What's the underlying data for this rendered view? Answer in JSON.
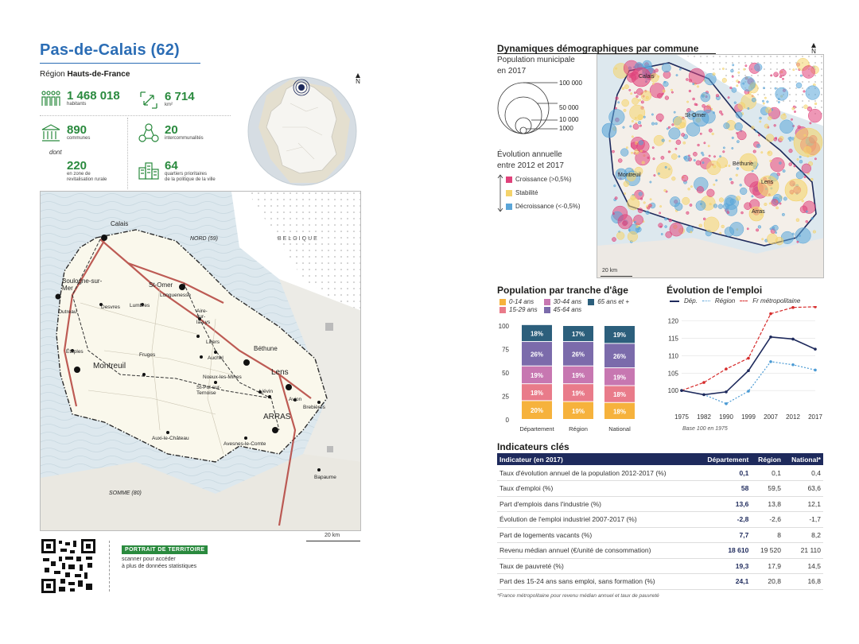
{
  "header": {
    "title": "Pas-de-Calais (62)",
    "region_label": "Région",
    "region_name": "Hauts-de-France"
  },
  "stats": {
    "habitants_value": "1 468 018",
    "habitants_label": "habitants",
    "area_value": "6 714",
    "area_unit": "km²",
    "communes_value": "890",
    "communes_label": "communes",
    "intercos_value": "20",
    "intercos_label": "intercommunalités",
    "dont_label": "dont",
    "zrr_value": "220",
    "zrr_label_1": "en zone de",
    "zrr_label_2": "revitalisation rurale",
    "qpv_value": "64",
    "qpv_label_1": "quartiers prioritaires",
    "qpv_label_2": "de la politique de la ville"
  },
  "compass": {
    "north": "N"
  },
  "left_map": {
    "labels": {
      "calais": "Calais",
      "nord": "NORD (59)",
      "belgique": "BELGIQUE",
      "boulogne_1": "Boulogne-sur-",
      "boulogne_2": "Mer",
      "st_omer": "St-Omer",
      "longuenesse": "Longuenesse",
      "desvres": "Desvres",
      "lumbres": "Lumbres",
      "outreau": "Outreau",
      "aire_1": "Aire-",
      "aire_2": "sur-",
      "aire_3": "la-Lys",
      "lillers": "Lillers",
      "bethune": "Béthune",
      "etaples": "Étaples",
      "fruges": "Fruges",
      "auchel": "Auchel",
      "montreuil": "Montreuil",
      "lens": "Lens",
      "noeux": "Noeux-les-Mines",
      "liévin": "Liévin",
      "avion": "Avion",
      "st_pol_1": "St-Pol-sur-",
      "st_pol_2": "Ternoise",
      "bruebiere": "Brebières",
      "arras": "ARRAS",
      "auxi": "Auxi-le-Château",
      "avesnes": "Avesnes-le-Comte",
      "bapaume": "Bapaume",
      "somme": "SOMME (80)"
    },
    "scale": "20 km"
  },
  "footer": {
    "badge": "PORTRAIT DE TERRITOIRE",
    "text_1": "scanner pour accéder",
    "text_2": "à plus de données statistiques"
  },
  "demo": {
    "title": "Dynamiques démographiques par commune",
    "pop_title": "Population municipale",
    "pop_year": "en 2017",
    "sizes": [
      "100 000",
      "50 000",
      "10 000",
      "1000"
    ],
    "evo_title": "Évolution annuelle",
    "evo_period": "entre 2012 et 2017",
    "evo_items": [
      {
        "label": "Croissance (>0,5%)",
        "color": "#e0417a"
      },
      {
        "label": "Stabilité",
        "color": "#f4d36b"
      },
      {
        "label": "Décroissance (<-0,5%)",
        "color": "#5aa5d8"
      }
    ],
    "map_labels": {
      "calais": "Calais",
      "st_omer": "St-Omer",
      "montreuil": "Montreuil",
      "bethune": "Béthune",
      "lens": "Lens",
      "arras": "Arras"
    },
    "scale": "20 km"
  },
  "age": {
    "title": "Population par tranche d'âge",
    "legend": [
      {
        "label": "0-14 ans",
        "color": "#f6b23c"
      },
      {
        "label": "30-44 ans",
        "color": "#c777b1"
      },
      {
        "label": "65 ans et +",
        "color": "#2c5f7c"
      },
      {
        "label": "15-29 ans",
        "color": "#e97b8a"
      },
      {
        "label": "45-64 ans",
        "color": "#7b6bab"
      }
    ]
  },
  "emploi": {
    "title": "Évolution de l'emploi",
    "legend": [
      "Dép.",
      "Région",
      "Fr métropolitaine"
    ],
    "note": "Base 100 en 1975"
  },
  "chart_data": [
    {
      "type": "bar",
      "title": "Population par tranche d'âge",
      "categories": [
        "Département",
        "Région",
        "National"
      ],
      "ylim": [
        0,
        100
      ],
      "yticks": [
        0,
        25,
        50,
        75,
        100
      ],
      "series": [
        {
          "name": "0-14 ans",
          "color": "#f6b23c",
          "values": [
            20,
            19,
            18
          ]
        },
        {
          "name": "15-29 ans",
          "color": "#e97b8a",
          "values": [
            18,
            19,
            18
          ]
        },
        {
          "name": "30-44 ans",
          "color": "#c777b1",
          "values": [
            19,
            19,
            19
          ]
        },
        {
          "name": "45-64 ans",
          "color": "#7b6bab",
          "values": [
            26,
            26,
            26
          ]
        },
        {
          "name": "65 ans et +",
          "color": "#2c5f7c",
          "values": [
            18,
            17,
            19
          ]
        }
      ]
    },
    {
      "type": "line",
      "title": "Évolution de l'emploi",
      "x": [
        "1975",
        "1982",
        "1990",
        "1999",
        "2007",
        "2012",
        "2017"
      ],
      "ylim": [
        95,
        122
      ],
      "yticks": [
        100,
        105,
        110,
        115,
        120
      ],
      "series": [
        {
          "name": "Dép.",
          "color": "#1e2a5c",
          "style": "solid",
          "values": [
            100,
            98.8,
            99.6,
            105.7,
            115.4,
            114.8,
            111.9
          ]
        },
        {
          "name": "Région",
          "color": "#4a9ad4",
          "style": "dotted",
          "values": [
            100,
            98.8,
            96.2,
            99.8,
            108.3,
            107.4,
            105.9
          ]
        },
        {
          "name": "Fr métropolitaine",
          "color": "#d62b2b",
          "style": "dashed",
          "values": [
            100,
            102.3,
            106.2,
            109.3,
            122.1,
            123.9,
            124.1
          ]
        }
      ]
    }
  ],
  "indicators": {
    "title": "Indicateurs clés",
    "headers": [
      "Indicateur (en 2017)",
      "Département",
      "Région",
      "National*"
    ],
    "rows": [
      [
        "Taux d'évolution annuel de la population 2012-2017 (%)",
        "0,1",
        "0,1",
        "0,4"
      ],
      [
        "Taux d'emploi (%)",
        "58",
        "59,5",
        "63,6"
      ],
      [
        "Part d'emplois dans l'industrie (%)",
        "13,6",
        "13,8",
        "12,1"
      ],
      [
        "Évolution de l'emploi industriel 2007-2017 (%)",
        "-2,8",
        "-2,6",
        "-1,7"
      ],
      [
        "Part de logements vacants (%)",
        "7,7",
        "8",
        "8,2"
      ],
      [
        "Revenu médian annuel (€/unité de consommation)",
        "18 610",
        "19 520",
        "21 110"
      ],
      [
        "Taux de pauvreté (%)",
        "19,3",
        "17,9",
        "14,5"
      ],
      [
        "Part des 15-24 ans sans emploi, sans formation (%)",
        "24,1",
        "20,8",
        "16,8"
      ]
    ],
    "footnote": "*France métropolitaine pour revenu médian annuel et taux de pauvreté"
  }
}
